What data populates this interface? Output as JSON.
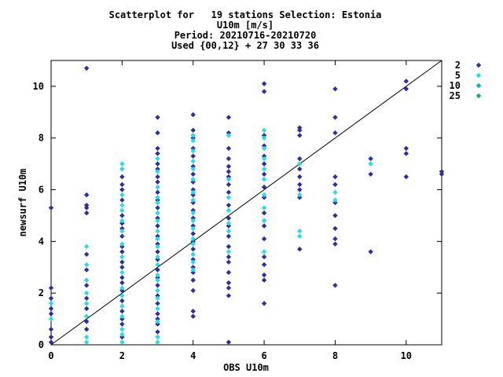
{
  "chart_data": {
    "type": "scatter",
    "title_lines": [
      "Scatterplot for   19 stations Selection: Estonia",
      "U10m [m/s]",
      "Period: 20210716-20210720",
      "Used {00,12} + 27 30 33 36"
    ],
    "xlabel": "OBS U10m",
    "ylabel": "newsurf U10m",
    "xlim": [
      0,
      11
    ],
    "ylim": [
      0,
      11
    ],
    "xticks": [
      0,
      2,
      4,
      6,
      8,
      10
    ],
    "yticks": [
      0,
      2,
      4,
      6,
      8,
      10
    ],
    "grid": false,
    "legend_position": "right",
    "reference_line": "y = x",
    "series": [
      {
        "name": "2",
        "color": "#2c2ca6",
        "points": [
          [
            0,
            0.1
          ],
          [
            0,
            0.3
          ],
          [
            0,
            0.6
          ],
          [
            0,
            1.2
          ],
          [
            0,
            1.4
          ],
          [
            0,
            1.8
          ],
          [
            0,
            2.2
          ],
          [
            0,
            5.3
          ],
          [
            1,
            0.6
          ],
          [
            1,
            0.9
          ],
          [
            1,
            1.4
          ],
          [
            1,
            1.8
          ],
          [
            1,
            2.3
          ],
          [
            1,
            2.9
          ],
          [
            1,
            3.5
          ],
          [
            1,
            5.1
          ],
          [
            1,
            5.3
          ],
          [
            1,
            5.4
          ],
          [
            1,
            5.8
          ],
          [
            1,
            10.7
          ],
          [
            2,
            0.3
          ],
          [
            2,
            0.8
          ],
          [
            2,
            1.0
          ],
          [
            2,
            1.3
          ],
          [
            2,
            1.7
          ],
          [
            2,
            2.1
          ],
          [
            2,
            2.4
          ],
          [
            2,
            2.6
          ],
          [
            2,
            3.0
          ],
          [
            2,
            3.2
          ],
          [
            2,
            3.6
          ],
          [
            2,
            3.8
          ],
          [
            2,
            4.2
          ],
          [
            2,
            4.5
          ],
          [
            2,
            4.7
          ],
          [
            2,
            5.0
          ],
          [
            2,
            5.6
          ],
          [
            2,
            6.0
          ],
          [
            2,
            6.2
          ],
          [
            2,
            6.5
          ],
          [
            3,
            0.5
          ],
          [
            3,
            0.8
          ],
          [
            3,
            1.0
          ],
          [
            3,
            1.2
          ],
          [
            3,
            1.6
          ],
          [
            3,
            1.9
          ],
          [
            3,
            2.3
          ],
          [
            3,
            2.6
          ],
          [
            3,
            2.9
          ],
          [
            3,
            3.3
          ],
          [
            3,
            3.6
          ],
          [
            3,
            3.9
          ],
          [
            3,
            4.2
          ],
          [
            3,
            4.6
          ],
          [
            3,
            4.9
          ],
          [
            3,
            5.3
          ],
          [
            3,
            5.6
          ],
          [
            3,
            5.9
          ],
          [
            3,
            6.3
          ],
          [
            3,
            6.5
          ],
          [
            3,
            6.8
          ],
          [
            3,
            7.0
          ],
          [
            3,
            7.4
          ],
          [
            3,
            7.6
          ],
          [
            3,
            8.2
          ],
          [
            3,
            8.8
          ],
          [
            4,
            1.1
          ],
          [
            4,
            1.3
          ],
          [
            4,
            2.1
          ],
          [
            4,
            2.5
          ],
          [
            4,
            2.8
          ],
          [
            4,
            3.0
          ],
          [
            4,
            3.3
          ],
          [
            4,
            3.7
          ],
          [
            4,
            4.0
          ],
          [
            4,
            4.3
          ],
          [
            4,
            4.6
          ],
          [
            4,
            4.9
          ],
          [
            4,
            5.2
          ],
          [
            4,
            5.5
          ],
          [
            4,
            5.8
          ],
          [
            4,
            6.0
          ],
          [
            4,
            6.3
          ],
          [
            4,
            6.6
          ],
          [
            4,
            6.9
          ],
          [
            4,
            7.3
          ],
          [
            4,
            7.6
          ],
          [
            4,
            8.0
          ],
          [
            4,
            8.3
          ],
          [
            4,
            8.9
          ],
          [
            5,
            0.1
          ],
          [
            5,
            1.9
          ],
          [
            5,
            2.2
          ],
          [
            5,
            2.4
          ],
          [
            5,
            2.8
          ],
          [
            5,
            3.2
          ],
          [
            5,
            3.4
          ],
          [
            5,
            3.8
          ],
          [
            5,
            4.2
          ],
          [
            5,
            4.6
          ],
          [
            5,
            4.9
          ],
          [
            5,
            5.4
          ],
          [
            5,
            5.9
          ],
          [
            5,
            6.2
          ],
          [
            5,
            6.5
          ],
          [
            5,
            6.7
          ],
          [
            5,
            6.9
          ],
          [
            5,
            7.2
          ],
          [
            5,
            7.6
          ],
          [
            5,
            8.2
          ],
          [
            5,
            8.8
          ],
          [
            6,
            1.6
          ],
          [
            6,
            2.5
          ],
          [
            6,
            2.7
          ],
          [
            6,
            3.1
          ],
          [
            6,
            3.4
          ],
          [
            6,
            4.1
          ],
          [
            6,
            4.6
          ],
          [
            6,
            5.1
          ],
          [
            6,
            5.7
          ],
          [
            6,
            6.1
          ],
          [
            6,
            6.6
          ],
          [
            6,
            7.0
          ],
          [
            6,
            7.3
          ],
          [
            6,
            7.7
          ],
          [
            6,
            8.1
          ],
          [
            6,
            9.8
          ],
          [
            6,
            10.1
          ],
          [
            7,
            3.7
          ],
          [
            7,
            5.7
          ],
          [
            7,
            6.0
          ],
          [
            7,
            6.2
          ],
          [
            7,
            6.5
          ],
          [
            7,
            6.8
          ],
          [
            7,
            7.2
          ],
          [
            7,
            8.1
          ],
          [
            7,
            8.3
          ],
          [
            7,
            8.4
          ],
          [
            8,
            2.3
          ],
          [
            8,
            3.9
          ],
          [
            8,
            4.1
          ],
          [
            8,
            4.5
          ],
          [
            8,
            5.0
          ],
          [
            8,
            5.5
          ],
          [
            8,
            6.2
          ],
          [
            8,
            6.5
          ],
          [
            8,
            8.2
          ],
          [
            8,
            8.8
          ],
          [
            8,
            9.9
          ],
          [
            9,
            3.6
          ],
          [
            9,
            6.6
          ],
          [
            9,
            7.2
          ],
          [
            10,
            6.5
          ],
          [
            10,
            7.4
          ],
          [
            10,
            7.6
          ],
          [
            10,
            9.9
          ],
          [
            10,
            10.2
          ],
          [
            11,
            6.6
          ],
          [
            11,
            6.7
          ]
        ]
      },
      {
        "name": "5",
        "color": "#1ee1e1",
        "points": [
          [
            0,
            1.0
          ],
          [
            0,
            1.6
          ],
          [
            1,
            0.1
          ],
          [
            1,
            0.3
          ],
          [
            1,
            1.1
          ],
          [
            1,
            1.6
          ],
          [
            1,
            2.0
          ],
          [
            1,
            2.5
          ],
          [
            1,
            3.1
          ],
          [
            1,
            3.8
          ],
          [
            2,
            0.1
          ],
          [
            2,
            0.4
          ],
          [
            2,
            0.6
          ],
          [
            2,
            1.1
          ],
          [
            2,
            1.5
          ],
          [
            2,
            1.9
          ],
          [
            2,
            2.2
          ],
          [
            2,
            2.8
          ],
          [
            2,
            3.4
          ],
          [
            2,
            3.9
          ],
          [
            2,
            4.4
          ],
          [
            2,
            4.8
          ],
          [
            2,
            5.2
          ],
          [
            2,
            5.4
          ],
          [
            2,
            5.8
          ],
          [
            2,
            6.8
          ],
          [
            2,
            7.0
          ],
          [
            3,
            0.1
          ],
          [
            3,
            0.3
          ],
          [
            3,
            0.9
          ],
          [
            3,
            1.4
          ],
          [
            3,
            1.8
          ],
          [
            3,
            2.1
          ],
          [
            3,
            2.5
          ],
          [
            3,
            2.7
          ],
          [
            3,
            3.1
          ],
          [
            3,
            3.4
          ],
          [
            3,
            3.8
          ],
          [
            3,
            4.1
          ],
          [
            3,
            4.4
          ],
          [
            3,
            4.8
          ],
          [
            3,
            5.1
          ],
          [
            3,
            5.5
          ],
          [
            3,
            5.7
          ],
          [
            3,
            6.1
          ],
          [
            3,
            6.7
          ],
          [
            3,
            7.2
          ],
          [
            4,
            2.9
          ],
          [
            4,
            3.2
          ],
          [
            4,
            3.5
          ],
          [
            4,
            3.9
          ],
          [
            4,
            4.1
          ],
          [
            4,
            4.5
          ],
          [
            4,
            4.8
          ],
          [
            4,
            5.1
          ],
          [
            4,
            5.6
          ],
          [
            4,
            5.9
          ],
          [
            4,
            6.4
          ],
          [
            4,
            6.8
          ],
          [
            4,
            7.1
          ],
          [
            4,
            7.5
          ],
          [
            4,
            7.9
          ],
          [
            4,
            8.1
          ],
          [
            5,
            3.6
          ],
          [
            5,
            4.4
          ],
          [
            5,
            4.7
          ],
          [
            5,
            5.2
          ],
          [
            5,
            5.7
          ],
          [
            5,
            6.4
          ],
          [
            5,
            8.1
          ],
          [
            6,
            3.6
          ],
          [
            6,
            4.8
          ],
          [
            6,
            5.3
          ],
          [
            6,
            5.8
          ],
          [
            6,
            6.4
          ],
          [
            6,
            6.8
          ],
          [
            6,
            7.2
          ],
          [
            6,
            7.6
          ],
          [
            6,
            8.0
          ],
          [
            6,
            8.3
          ],
          [
            7,
            4.2
          ],
          [
            7,
            4.4
          ],
          [
            7,
            5.8
          ],
          [
            7,
            7.0
          ],
          [
            8,
            5.6
          ],
          [
            8,
            5.9
          ],
          [
            9,
            7.0
          ]
        ]
      },
      {
        "name": "10",
        "color": "#00b5b5",
        "points": []
      },
      {
        "name": "25",
        "color": "#1aa77a",
        "points": []
      }
    ]
  }
}
